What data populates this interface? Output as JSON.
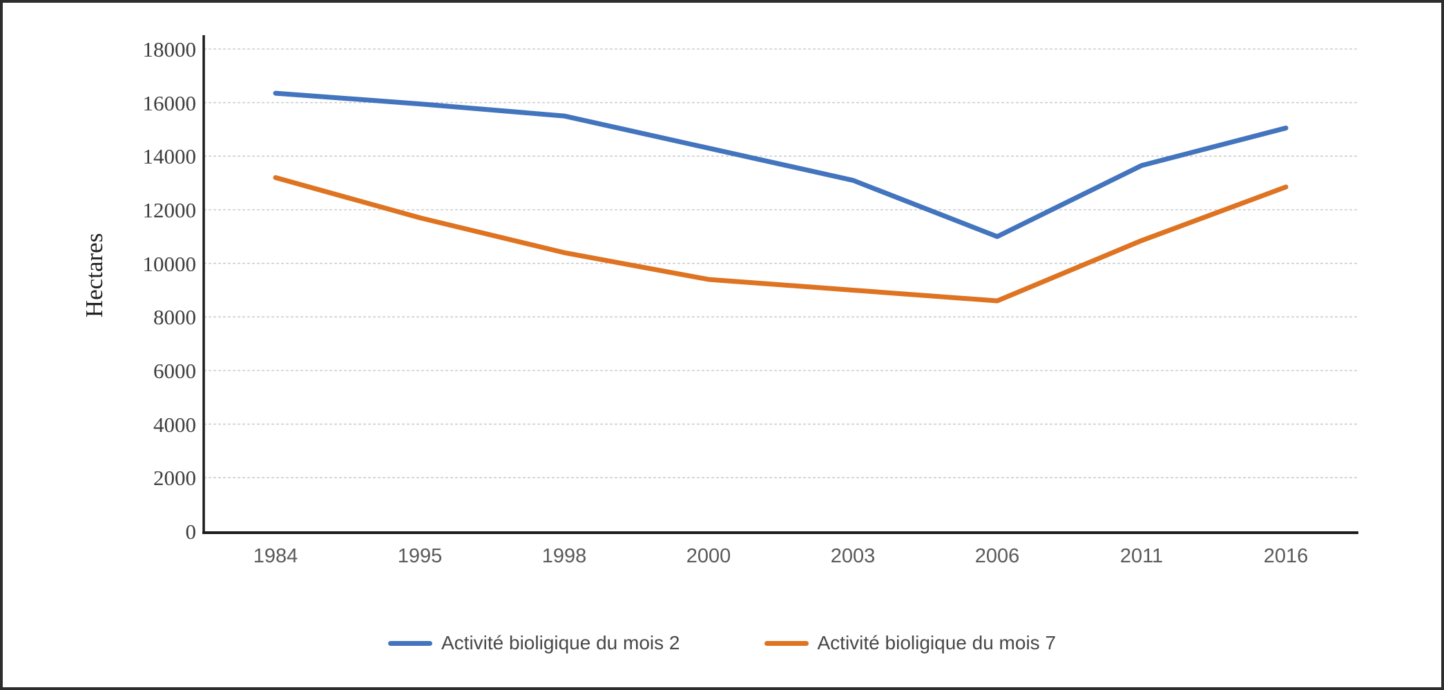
{
  "figure": {
    "y_axis_title": "Hectares"
  },
  "chart_data": {
    "type": "line",
    "title": "",
    "xlabel": "",
    "ylabel": "Hectares",
    "categories": [
      "1984",
      "1995",
      "1998",
      "2000",
      "2003",
      "2006",
      "2011",
      "2016"
    ],
    "series": [
      {
        "name": "Activité bioligique du mois 2",
        "color": "#4374BE",
        "values": [
          16350,
          15950,
          15500,
          14300,
          13100,
          11000,
          13650,
          15050
        ]
      },
      {
        "name": "Activité bioligique du mois 7",
        "color": "#DE7321",
        "values": [
          13200,
          11700,
          10400,
          9400,
          9000,
          8600,
          10850,
          12850
        ]
      }
    ],
    "ylim": [
      0,
      18000
    ],
    "yticks": [
      0,
      2000,
      4000,
      6000,
      8000,
      10000,
      12000,
      14000,
      16000,
      18000
    ],
    "grid": "horizontal-dashed",
    "gridline_color": "#cdcdcd",
    "axis_color": "#1c1c1c",
    "legend_position": "bottom"
  }
}
